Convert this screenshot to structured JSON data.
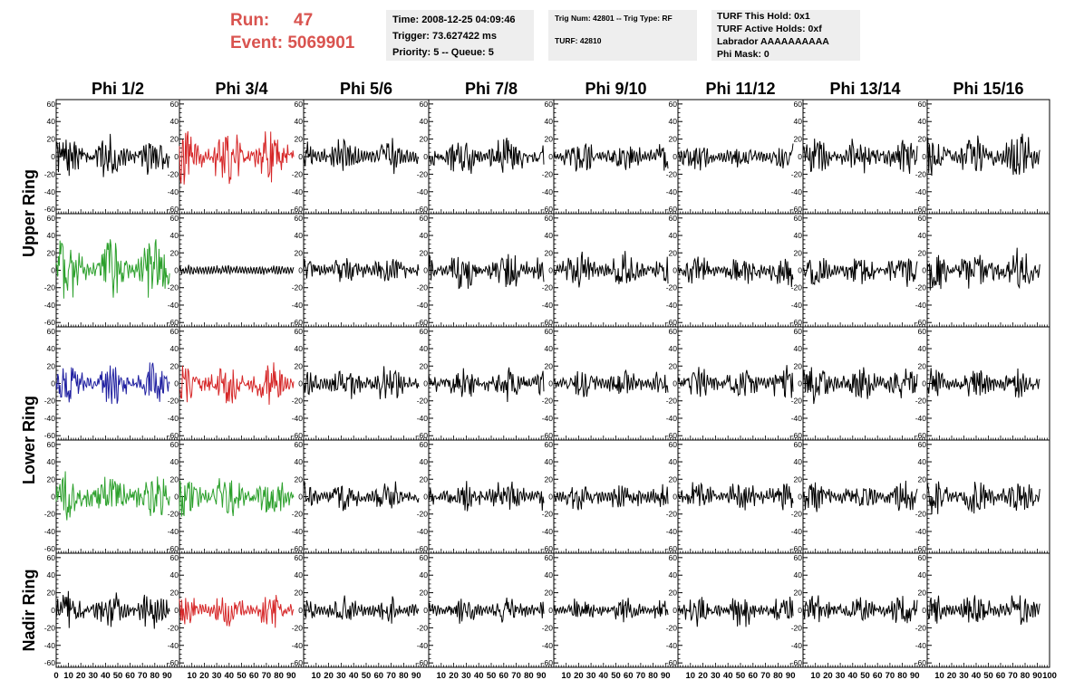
{
  "header": {
    "run_label": "Run:",
    "run_value": "47",
    "event_label": "Event:",
    "event_value": "5069901",
    "box1": [
      "Time: 2008-12-25 04:09:46",
      "Trigger: 73.627422 ms",
      "Priority: 5 -- Queue: 5"
    ],
    "box2": [
      "Trig Num: 42801 -- Trig Type: RF",
      "TURF: 42810"
    ],
    "box3": [
      "TURF This Hold: 0x1",
      "TURF Active Holds: 0xf",
      "Labrador AAAAAAAAAA",
      "Phi Mask: 0"
    ]
  },
  "colors": {
    "run_text": "#d9534f",
    "default_trace": "#000000",
    "red_trace": "#d62728",
    "green_trace": "#2ca02c",
    "blue_trace": "#1f1fa0"
  },
  "chart_data": {
    "type": "line",
    "columns": [
      "Phi 1/2",
      "Phi 3/4",
      "Phi 5/6",
      "Phi 7/8",
      "Phi 9/10",
      "Phi 11/12",
      "Phi 13/14",
      "Phi 15/16"
    ],
    "row_labels": [
      "Upper Ring",
      "Lower Ring",
      "Nadir Ring"
    ],
    "ylim": [
      -65,
      65
    ],
    "xlim": [
      0,
      100
    ],
    "y_ticks": [
      60,
      40,
      20,
      0,
      -20,
      -40,
      -60
    ],
    "x_ticks": [
      0,
      10,
      20,
      30,
      40,
      50,
      60,
      70,
      80,
      90,
      100
    ],
    "panels": [
      {
        "row": 0,
        "col": 0,
        "color": "black",
        "amp": 16
      },
      {
        "row": 0,
        "col": 1,
        "color": "red",
        "amp": 22
      },
      {
        "row": 0,
        "col": 2,
        "color": "black",
        "amp": 14
      },
      {
        "row": 0,
        "col": 3,
        "color": "black",
        "amp": 15
      },
      {
        "row": 0,
        "col": 4,
        "color": "black",
        "amp": 12
      },
      {
        "row": 0,
        "col": 5,
        "color": "black",
        "amp": 9
      },
      {
        "row": 0,
        "col": 6,
        "color": "black",
        "amp": 14
      },
      {
        "row": 0,
        "col": 7,
        "color": "black",
        "amp": 17
      },
      {
        "row": 1,
        "col": 0,
        "color": "green",
        "amp": 26
      },
      {
        "row": 1,
        "col": 1,
        "color": "black",
        "amp": 2
      },
      {
        "row": 1,
        "col": 2,
        "color": "black",
        "amp": 11
      },
      {
        "row": 1,
        "col": 3,
        "color": "black",
        "amp": 16
      },
      {
        "row": 1,
        "col": 4,
        "color": "black",
        "amp": 14
      },
      {
        "row": 1,
        "col": 5,
        "color": "black",
        "amp": 12
      },
      {
        "row": 1,
        "col": 6,
        "color": "black",
        "amp": 12
      },
      {
        "row": 1,
        "col": 7,
        "color": "black",
        "amp": 18
      },
      {
        "row": 2,
        "col": 0,
        "color": "blue",
        "amp": 16
      },
      {
        "row": 2,
        "col": 1,
        "color": "red",
        "amp": 16
      },
      {
        "row": 2,
        "col": 2,
        "color": "black",
        "amp": 14
      },
      {
        "row": 2,
        "col": 3,
        "color": "black",
        "amp": 13
      },
      {
        "row": 2,
        "col": 4,
        "color": "black",
        "amp": 11
      },
      {
        "row": 2,
        "col": 5,
        "color": "black",
        "amp": 12
      },
      {
        "row": 2,
        "col": 6,
        "color": "black",
        "amp": 14
      },
      {
        "row": 2,
        "col": 7,
        "color": "black",
        "amp": 11
      },
      {
        "row": 3,
        "col": 0,
        "color": "green",
        "amp": 19
      },
      {
        "row": 3,
        "col": 1,
        "color": "green",
        "amp": 17
      },
      {
        "row": 3,
        "col": 2,
        "color": "black",
        "amp": 11
      },
      {
        "row": 3,
        "col": 3,
        "color": "black",
        "amp": 12
      },
      {
        "row": 3,
        "col": 4,
        "color": "black",
        "amp": 10
      },
      {
        "row": 3,
        "col": 5,
        "color": "black",
        "amp": 11
      },
      {
        "row": 3,
        "col": 6,
        "color": "black",
        "amp": 12
      },
      {
        "row": 3,
        "col": 7,
        "color": "black",
        "amp": 14
      },
      {
        "row": 4,
        "col": 0,
        "color": "black",
        "amp": 15
      },
      {
        "row": 4,
        "col": 1,
        "color": "red",
        "amp": 12
      },
      {
        "row": 4,
        "col": 2,
        "color": "black",
        "amp": 10
      },
      {
        "row": 4,
        "col": 3,
        "color": "black",
        "amp": 9
      },
      {
        "row": 4,
        "col": 4,
        "color": "black",
        "amp": 8
      },
      {
        "row": 4,
        "col": 5,
        "color": "black",
        "amp": 11
      },
      {
        "row": 4,
        "col": 6,
        "color": "black",
        "amp": 11
      },
      {
        "row": 4,
        "col": 7,
        "color": "black",
        "amp": 12
      }
    ]
  }
}
